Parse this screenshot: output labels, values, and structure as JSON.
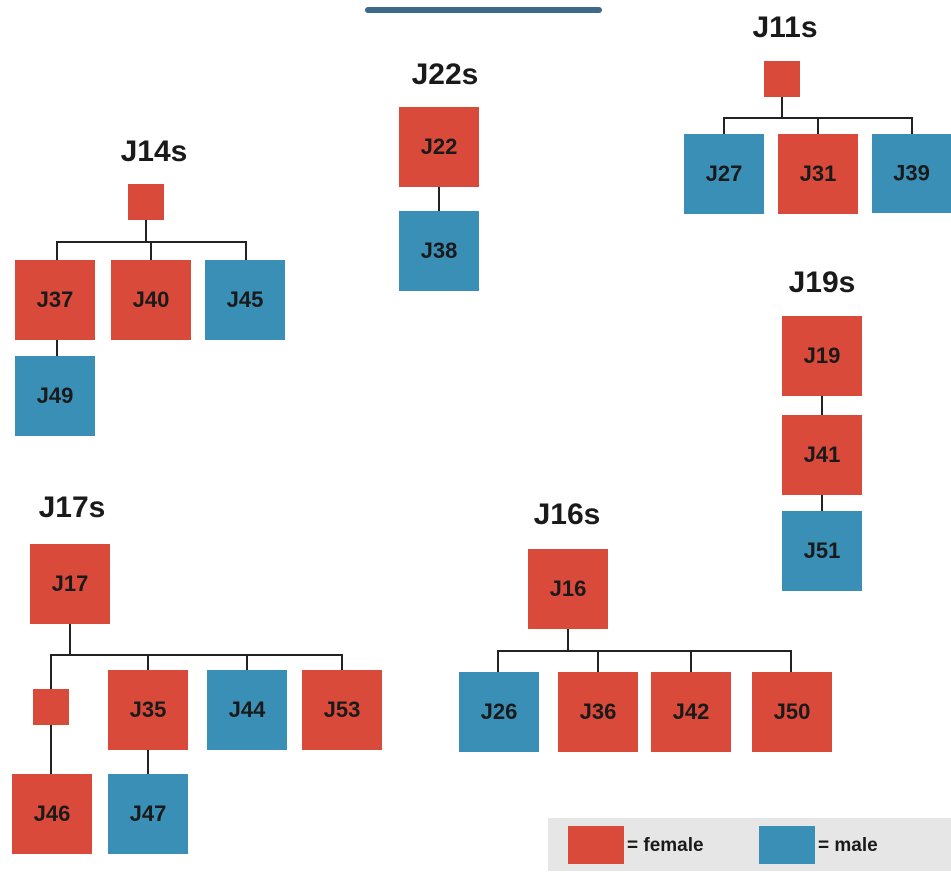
{
  "groups": [
    {
      "title": "J22s",
      "nodes": [
        {
          "label": "J22",
          "color": "#d94a3a"
        },
        {
          "label": "J38",
          "color": "#3a8fb7"
        }
      ]
    },
    {
      "title": "J11s",
      "nodes": [
        {
          "color": "#d94a3a"
        },
        {
          "label": "J27",
          "color": "#3a8fb7"
        },
        {
          "label": "J31",
          "color": "#d94a3a"
        },
        {
          "label": "J39",
          "color": "#3a8fb7"
        }
      ]
    },
    {
      "title": "J14s",
      "nodes": [
        {
          "color": "#d94a3a"
        },
        {
          "label": "J37",
          "color": "#d94a3a"
        },
        {
          "label": "J40",
          "color": "#d94a3a"
        },
        {
          "label": "J45",
          "color": "#3a8fb7"
        },
        {
          "label": "J49",
          "color": "#3a8fb7"
        }
      ]
    },
    {
      "title": "J19s",
      "nodes": [
        {
          "label": "J19",
          "color": "#d94a3a"
        },
        {
          "label": "J41",
          "color": "#d94a3a"
        },
        {
          "label": "J51",
          "color": "#3a8fb7"
        }
      ]
    },
    {
      "title": "J17s",
      "nodes": [
        {
          "label": "J17",
          "color": "#d94a3a"
        },
        {
          "color": "#d94a3a"
        },
        {
          "label": "J35",
          "color": "#d94a3a"
        },
        {
          "label": "J44",
          "color": "#3a8fb7"
        },
        {
          "label": "J53",
          "color": "#d94a3a"
        },
        {
          "label": "J46",
          "color": "#d94a3a"
        },
        {
          "label": "J47",
          "color": "#3a8fb7"
        }
      ]
    },
    {
      "title": "J16s",
      "nodes": [
        {
          "label": "J16",
          "color": "#d94a3a"
        },
        {
          "label": "J26",
          "color": "#3a8fb7"
        },
        {
          "label": "J36",
          "color": "#d94a3a"
        },
        {
          "label": "J42",
          "color": "#d94a3a"
        },
        {
          "label": "J50",
          "color": "#d94a3a"
        }
      ]
    }
  ],
  "legend": [
    {
      "label": "= female",
      "color": "#d94a3a"
    },
    {
      "label": "= male",
      "color": "#3a8fb7"
    }
  ]
}
